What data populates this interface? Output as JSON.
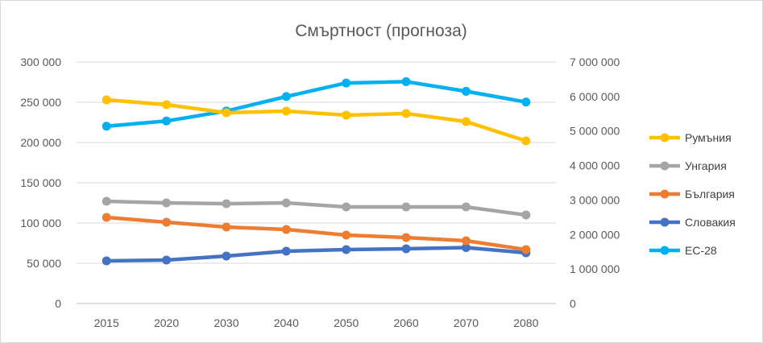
{
  "chart_data": {
    "type": "line",
    "title": "Смъртност (прогноза)",
    "categories": [
      "2015",
      "2020",
      "2030",
      "2040",
      "2050",
      "2060",
      "2070",
      "2080"
    ],
    "y_left": {
      "min": 0,
      "max": 300000,
      "step": 50000,
      "tick_labels": [
        "0",
        "50 000",
        "100 000",
        "150 000",
        "200 000",
        "250 000",
        "300 000"
      ]
    },
    "y_right": {
      "min": 0,
      "max": 7000000,
      "step": 1000000,
      "tick_labels": [
        "0",
        "1 000 000",
        "2 000 000",
        "3 000 000",
        "4 000 000",
        "5 000 000",
        "6 000 000",
        "7 000 000"
      ]
    },
    "grid": true,
    "legend_position": "right",
    "series": [
      {
        "name": "Румъния",
        "axis": "left",
        "color": "#FFC000",
        "values": [
          253000,
          247000,
          237000,
          239000,
          234000,
          236000,
          226000,
          202000
        ]
      },
      {
        "name": "Унгария",
        "axis": "left",
        "color": "#A5A5A5",
        "values": [
          127000,
          125000,
          124000,
          125000,
          120000,
          120000,
          120000,
          110000
        ]
      },
      {
        "name": "България",
        "axis": "left",
        "color": "#ED7D31",
        "values": [
          107000,
          101000,
          95000,
          92000,
          85000,
          82000,
          78000,
          67000
        ]
      },
      {
        "name": "Словакия",
        "axis": "left",
        "color": "#4472C4",
        "values": [
          53000,
          54000,
          59000,
          65000,
          67000,
          68000,
          69500,
          63000
        ]
      },
      {
        "name": "ЕС-28",
        "axis": "right",
        "color": "#00B0F0",
        "values": [
          5140000,
          5290000,
          5580000,
          6000000,
          6390000,
          6430000,
          6150000,
          5840000
        ]
      }
    ]
  }
}
